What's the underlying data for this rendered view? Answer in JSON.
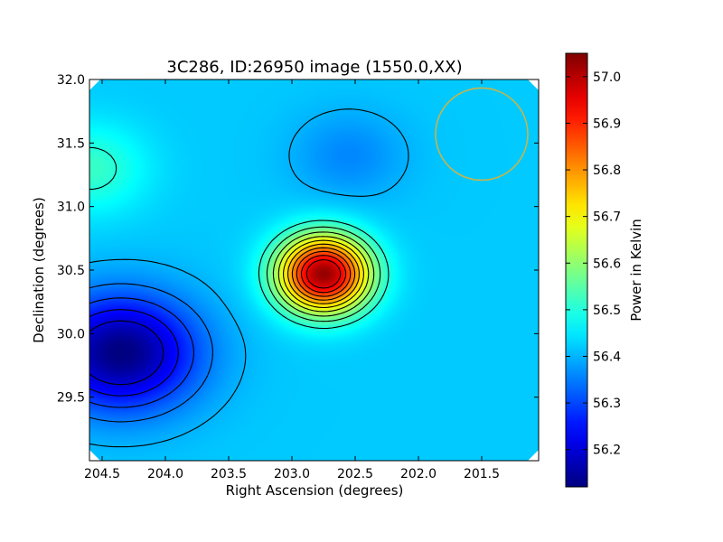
{
  "chart_data": {
    "type": "heatmap",
    "title": "3C286, ID:26950 image (1550.0,XX)",
    "xlabel": "Right Ascension (degrees)",
    "ylabel": "Declination (degrees)",
    "xlim": [
      204.6,
      201.05
    ],
    "ylim": [
      29.0,
      32.0
    ],
    "x_ticks": [
      "204.5",
      "204.0",
      "203.5",
      "203.0",
      "202.5",
      "202.0",
      "201.5"
    ],
    "x_tick_values": [
      204.5,
      204.0,
      203.5,
      203.0,
      202.5,
      202.0,
      201.5
    ],
    "y_ticks": [
      "29.5",
      "30.0",
      "30.5",
      "31.0",
      "31.5",
      "32.0"
    ],
    "y_tick_values": [
      29.5,
      30.0,
      30.5,
      31.0,
      31.5,
      32.0
    ],
    "colorbar": {
      "label": "Power in Kelvin",
      "min": 56.12,
      "max": 57.05,
      "ticks": [
        "56.2",
        "56.3",
        "56.4",
        "56.5",
        "56.6",
        "56.7",
        "56.8",
        "56.9",
        "57.0"
      ],
      "tick_values": [
        56.2,
        56.3,
        56.4,
        56.5,
        56.6,
        56.7,
        56.8,
        56.9,
        57.0
      ],
      "colormap": "jet"
    },
    "field": {
      "background": 56.42,
      "peak": {
        "ra": 202.75,
        "dec": 30.47,
        "value": 57.03
      },
      "minimum": {
        "ra": 204.35,
        "dec": 29.85,
        "value": 56.12
      },
      "secondary_low": {
        "ra": 202.55,
        "dec": 31.4,
        "value": 56.36
      },
      "secondary_high": {
        "ra": 204.6,
        "dec": 31.3,
        "value": 56.52
      }
    },
    "contour_levels": [
      56.2,
      56.25,
      56.3,
      56.35,
      56.4,
      56.5,
      56.55,
      56.6,
      56.65,
      56.7,
      56.75,
      56.8,
      56.85,
      56.9,
      56.95
    ],
    "beam_circle": {
      "ra": 201.5,
      "dec": 31.57,
      "color": "#c8b44a"
    }
  }
}
